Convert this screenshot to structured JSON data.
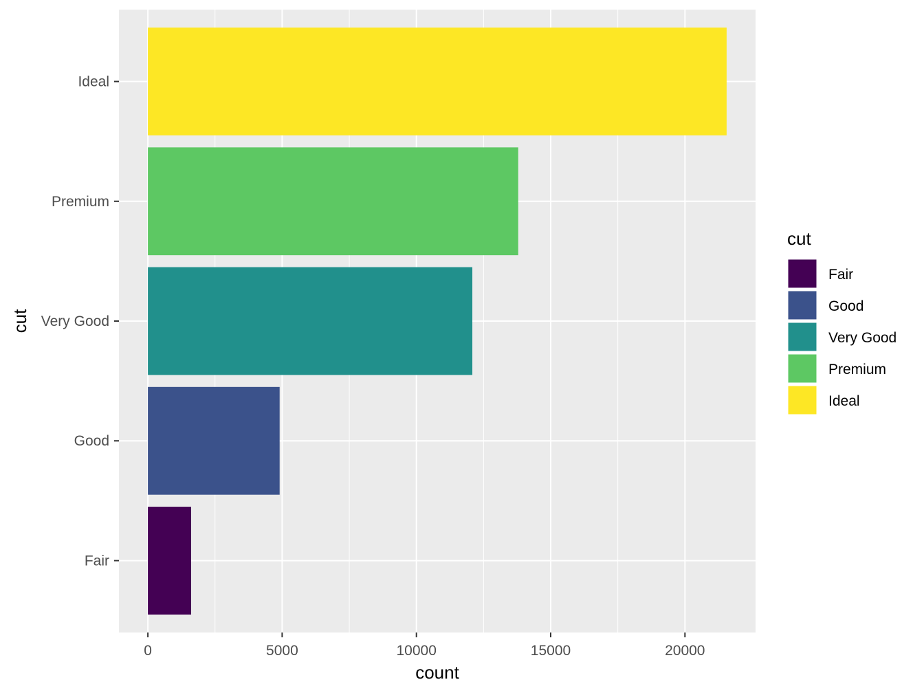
{
  "chart_data": {
    "type": "bar",
    "orientation": "horizontal",
    "categories": [
      "Fair",
      "Good",
      "Very Good",
      "Premium",
      "Ideal"
    ],
    "values": [
      1610,
      4906,
      12082,
      13791,
      21551
    ],
    "colors": [
      "#440154",
      "#3B528B",
      "#21908C",
      "#5DC863",
      "#FDE725"
    ],
    "xlabel": "count",
    "ylabel": "cut",
    "xlim": [
      -1078,
      22629
    ],
    "x_ticks": [
      0,
      5000,
      10000,
      15000,
      20000
    ],
    "x_tick_labels": [
      "0",
      "5000",
      "10000",
      "15000",
      "20000"
    ],
    "grid": true,
    "panel_background": "#EBEBEB",
    "grid_color": "#FFFFFF",
    "legend": {
      "title": "cut",
      "position": "right",
      "items": [
        "Fair",
        "Good",
        "Very Good",
        "Premium",
        "Ideal"
      ]
    }
  }
}
